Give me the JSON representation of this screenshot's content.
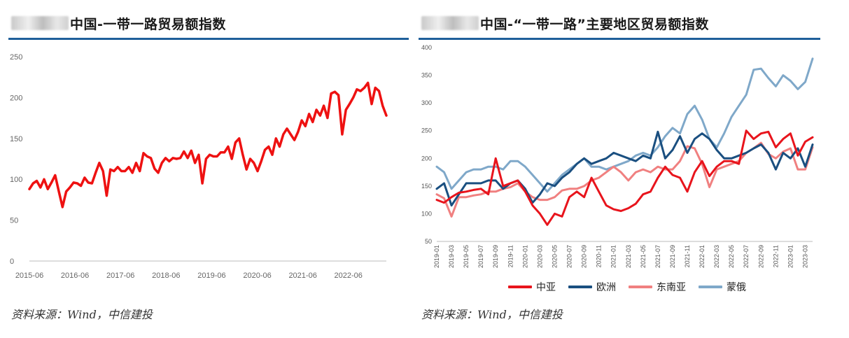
{
  "charts": {
    "left": {
      "title": "中国-一带一路贸易额指数",
      "source": "资料来源：Wind，中信建投"
    },
    "right": {
      "title": "中国-“一带一路”主要地区贸易额指数",
      "source": "资料来源：Wind，中信建投"
    }
  },
  "colors": {
    "accent_rule": "#1f5f9a",
    "left_series": "#ee1111",
    "central_asia": "#e8141c",
    "europe": "#1a4f80",
    "southeast_asia": "#f08080",
    "mongolia_russia": "#7fa8c9"
  },
  "chart_data": [
    {
      "type": "line",
      "title": "中国-一带一路贸易额指数",
      "xlabel": "",
      "ylabel": "",
      "ylim": [
        0,
        250
      ],
      "y_ticks": [
        "0",
        "50",
        "100",
        "150",
        "200",
        "250"
      ],
      "x_ticks": [
        "2015-06",
        "2016-06",
        "2017-06",
        "2018-06",
        "2019-06",
        "2020-06",
        "2021-06",
        "2022-06"
      ],
      "x_range": [
        "2015-06",
        "2023-04"
      ],
      "grid": false,
      "series": [
        {
          "values": [
            88,
            95,
            98,
            90,
            100,
            88,
            96,
            105,
            85,
            66,
            85,
            90,
            96,
            95,
            92,
            102,
            96,
            95,
            108,
            120,
            110,
            80,
            112,
            110,
            115,
            110,
            110,
            115,
            108,
            120,
            110,
            132,
            128,
            126,
            113,
            108,
            120,
            126,
            122,
            126,
            125,
            126,
            134,
            126,
            135,
            120,
            130,
            95,
            125,
            130,
            128,
            128,
            133,
            133,
            140,
            125,
            145,
            150,
            130,
            112,
            125,
            120,
            110,
            122,
            136,
            140,
            130,
            150,
            140,
            155,
            162,
            155,
            148,
            158,
            172,
            165,
            180,
            170,
            185,
            178,
            190,
            175,
            205,
            207,
            203,
            155,
            185,
            192,
            200,
            210,
            208,
            212,
            218,
            192,
            212,
            208,
            190,
            178
          ]
        }
      ]
    },
    {
      "type": "line",
      "title": "中国-“一带一路”主要地区贸易额指数",
      "xlabel": "",
      "ylabel": "",
      "ylim": [
        50,
        400
      ],
      "y_ticks": [
        "50",
        "100",
        "150",
        "200",
        "250",
        "300",
        "350",
        "400"
      ],
      "categories": [
        "2019-01",
        "2019-02",
        "2019-03",
        "2019-04",
        "2019-05",
        "2019-06",
        "2019-07",
        "2019-08",
        "2019-09",
        "2019-10",
        "2019-11",
        "2019-12",
        "2020-01",
        "2020-02",
        "2020-03",
        "2020-04",
        "2020-05",
        "2020-06",
        "2020-07",
        "2020-08",
        "2020-09",
        "2020-10",
        "2020-11",
        "2020-12",
        "2021-01",
        "2021-02",
        "2021-03",
        "2021-04",
        "2021-05",
        "2021-06",
        "2021-07",
        "2021-08",
        "2021-09",
        "2021-10",
        "2021-11",
        "2021-12",
        "2022-01",
        "2022-02",
        "2022-03",
        "2022-04",
        "2022-05",
        "2022-06",
        "2022-07",
        "2022-08",
        "2022-09",
        "2022-10",
        "2022-11",
        "2022-12",
        "2023-01",
        "2023-02",
        "2023-03",
        "2023-04"
      ],
      "x_tick_labels": [
        "2019-01",
        "2019-03",
        "2019-05",
        "2019-07",
        "2019-09",
        "2019-11",
        "2020-01",
        "2020-03",
        "2020-05",
        "2020-07",
        "2020-09",
        "2020-11",
        "2021-01",
        "2021-03",
        "2021-05",
        "2021-07",
        "2021-09",
        "2021-11",
        "2022-01",
        "2022-03",
        "2022-05",
        "2022-07",
        "2022-09",
        "2022-11",
        "2023-01",
        "2023-03"
      ],
      "legend_position": "bottom",
      "grid": false,
      "series": [
        {
          "name": "中亚",
          "color": "#e8141c",
          "values": [
            125,
            120,
            130,
            138,
            140,
            143,
            145,
            135,
            200,
            150,
            155,
            160,
            140,
            115,
            100,
            80,
            100,
            95,
            130,
            140,
            130,
            165,
            140,
            115,
            108,
            105,
            110,
            118,
            135,
            140,
            165,
            185,
            170,
            165,
            140,
            175,
            195,
            168,
            185,
            195,
            195,
            190,
            250,
            235,
            245,
            248,
            220,
            235,
            245,
            205,
            230,
            238
          ]
        },
        {
          "name": "欧洲",
          "color": "#1a4f80",
          "values": [
            145,
            155,
            115,
            135,
            155,
            155,
            155,
            160,
            160,
            145,
            155,
            160,
            145,
            120,
            135,
            155,
            150,
            165,
            175,
            190,
            200,
            190,
            195,
            200,
            210,
            205,
            200,
            195,
            205,
            200,
            248,
            200,
            215,
            240,
            210,
            235,
            245,
            235,
            215,
            200,
            200,
            205,
            210,
            218,
            225,
            210,
            180,
            210,
            200,
            218,
            185,
            225
          ]
        },
        {
          "name": "东南亚",
          "color": "#f08080",
          "values": [
            135,
            128,
            95,
            130,
            130,
            133,
            135,
            140,
            140,
            145,
            148,
            155,
            140,
            130,
            125,
            125,
            130,
            142,
            145,
            145,
            150,
            160,
            165,
            175,
            185,
            175,
            160,
            175,
            180,
            175,
            185,
            180,
            180,
            195,
            222,
            218,
            190,
            148,
            180,
            185,
            190,
            195,
            210,
            218,
            228,
            208,
            200,
            212,
            218,
            180,
            180,
            220
          ]
        },
        {
          "name": "蒙俄",
          "color": "#7fa8c9",
          "values": [
            185,
            175,
            145,
            160,
            175,
            180,
            180,
            185,
            185,
            180,
            195,
            195,
            185,
            170,
            155,
            140,
            155,
            170,
            180,
            190,
            200,
            185,
            185,
            180,
            185,
            190,
            195,
            205,
            210,
            205,
            220,
            240,
            255,
            245,
            280,
            295,
            270,
            235,
            220,
            245,
            275,
            295,
            315,
            360,
            362,
            345,
            330,
            350,
            340,
            325,
            338,
            380
          ]
        }
      ]
    }
  ]
}
